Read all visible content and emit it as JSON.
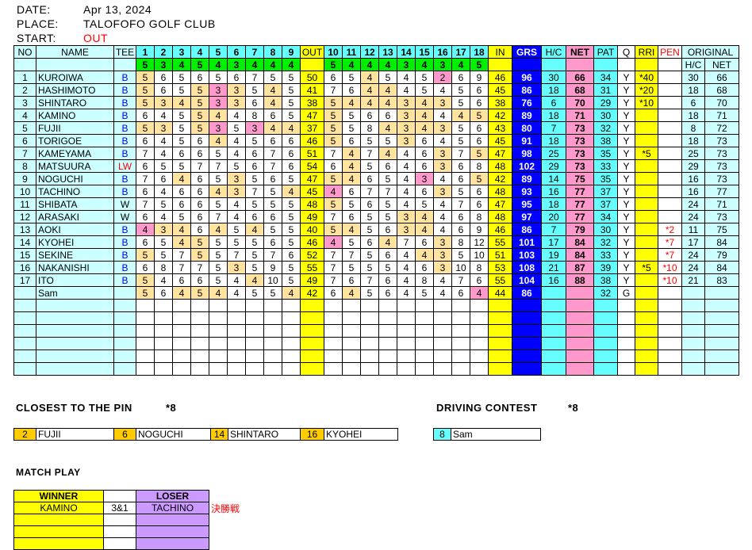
{
  "header": {
    "date_label": "DATE:",
    "date": "Apr 13, 2024",
    "place_label": "PLACE:",
    "place": "TALOFOFO GOLF CLUB",
    "start_label": "START:",
    "start": "OUT"
  },
  "columns": {
    "no": "NO",
    "name": "NAME",
    "tee": "TEE",
    "holes": [
      "1",
      "2",
      "3",
      "4",
      "5",
      "6",
      "7",
      "8",
      "9",
      "OUT",
      "10",
      "11",
      "12",
      "13",
      "14",
      "15",
      "16",
      "17",
      "18",
      "IN"
    ],
    "grs": "GRS",
    "hc": "H/C",
    "net": "NET",
    "pat": "PAT",
    "q": "Q",
    "rri": "RRI",
    "pen": "PEN",
    "original": "ORIGINAL",
    "orig_hc": "H/C",
    "orig_net": "NET"
  },
  "pars": [
    5,
    3,
    4,
    5,
    4,
    3,
    4,
    4,
    4,
    5,
    4,
    4,
    4,
    3,
    4,
    3,
    4,
    5
  ],
  "colors": {
    "par": "#ffe39e",
    "under_par": "#ff99cc",
    "tee_B": "#0000ff",
    "tee_W": "#000000",
    "tee_LW": "#ff0000",
    "pen": "#ff0000"
  },
  "players": [
    {
      "no": "1",
      "name": "KUROIWA",
      "tee": "B",
      "scores": [
        5,
        6,
        5,
        6,
        5,
        6,
        7,
        5,
        5,
        6,
        5,
        4,
        5,
        4,
        5,
        2,
        6,
        9
      ],
      "out": "50",
      "in": "46",
      "grs": "96",
      "hc": "30",
      "net": "66",
      "pat": "34",
      "q": "Y",
      "rri": "*40",
      "pen": "",
      "orig_hc": "30",
      "orig_net": "66"
    },
    {
      "no": "2",
      "name": "HASHIMOTO",
      "tee": "B",
      "scores": [
        5,
        6,
        5,
        5,
        3,
        3,
        5,
        4,
        5,
        7,
        6,
        4,
        4,
        4,
        5,
        4,
        5,
        6
      ],
      "out": "41",
      "in": "45",
      "grs": "86",
      "hc": "18",
      "net": "68",
      "pat": "31",
      "q": "Y",
      "rri": "*20",
      "pen": "",
      "orig_hc": "18",
      "orig_net": "68"
    },
    {
      "no": "3",
      "name": "SHINTARO",
      "tee": "B",
      "scores": [
        5,
        3,
        4,
        5,
        3,
        3,
        6,
        4,
        5,
        5,
        4,
        4,
        4,
        3,
        4,
        3,
        5,
        6
      ],
      "out": "38",
      "in": "38",
      "grs": "76",
      "hc": "6",
      "net": "70",
      "pat": "29",
      "q": "Y",
      "rri": "*10",
      "pen": "",
      "orig_hc": "6",
      "orig_net": "70"
    },
    {
      "no": "4",
      "name": "KAMINO",
      "tee": "B",
      "scores": [
        6,
        4,
        5,
        5,
        4,
        4,
        8,
        6,
        5,
        5,
        5,
        6,
        6,
        3,
        4,
        4,
        4,
        5
      ],
      "out": "47",
      "in": "42",
      "grs": "89",
      "hc": "18",
      "net": "71",
      "pat": "30",
      "q": "Y",
      "rri": "",
      "pen": "",
      "orig_hc": "18",
      "orig_net": "71"
    },
    {
      "no": "5",
      "name": "FUJII",
      "tee": "B",
      "scores": [
        5,
        3,
        5,
        5,
        3,
        5,
        3,
        4,
        4,
        5,
        5,
        8,
        4,
        3,
        4,
        3,
        5,
        6
      ],
      "out": "37",
      "in": "43",
      "grs": "80",
      "hc": "7",
      "net": "73",
      "pat": "32",
      "q": "Y",
      "rri": "",
      "pen": "",
      "orig_hc": "8",
      "orig_net": "72"
    },
    {
      "no": "6",
      "name": "TORIGOE",
      "tee": "B",
      "scores": [
        6,
        4,
        5,
        6,
        4,
        4,
        5,
        6,
        6,
        5,
        6,
        5,
        5,
        3,
        6,
        4,
        5,
        6
      ],
      "out": "46",
      "in": "45",
      "grs": "91",
      "hc": "18",
      "net": "73",
      "pat": "38",
      "q": "Y",
      "rri": "",
      "pen": "",
      "orig_hc": "18",
      "orig_net": "73"
    },
    {
      "no": "7",
      "name": "KAMEYAMA",
      "tee": "B",
      "scores": [
        7,
        4,
        6,
        6,
        5,
        4,
        6,
        7,
        6,
        7,
        4,
        7,
        4,
        4,
        6,
        3,
        7,
        5
      ],
      "out": "51",
      "in": "47",
      "grs": "98",
      "hc": "25",
      "net": "73",
      "pat": "35",
      "q": "Y",
      "rri": "*5",
      "pen": "",
      "orig_hc": "25",
      "orig_net": "73"
    },
    {
      "no": "8",
      "name": "MATSUURA",
      "tee": "LW",
      "scores": [
        6,
        5,
        5,
        7,
        7,
        5,
        6,
        7,
        6,
        6,
        4,
        5,
        6,
        4,
        6,
        3,
        6,
        8
      ],
      "out": "54",
      "in": "48",
      "grs": "102",
      "hc": "29",
      "net": "73",
      "pat": "33",
      "q": "Y",
      "rri": "",
      "pen": "",
      "orig_hc": "29",
      "orig_net": "73"
    },
    {
      "no": "9",
      "name": "NOGUCHI",
      "tee": "B",
      "scores": [
        7,
        6,
        4,
        6,
        5,
        3,
        5,
        6,
        5,
        5,
        4,
        6,
        5,
        4,
        3,
        4,
        6,
        5
      ],
      "out": "47",
      "in": "42",
      "grs": "89",
      "hc": "14",
      "net": "75",
      "pat": "35",
      "q": "Y",
      "rri": "",
      "pen": "",
      "orig_hc": "16",
      "orig_net": "73"
    },
    {
      "no": "10",
      "name": "TACHINO",
      "tee": "B",
      "scores": [
        6,
        4,
        6,
        6,
        4,
        3,
        7,
        5,
        4,
        4,
        6,
        7,
        7,
        4,
        6,
        3,
        5,
        6
      ],
      "out": "45",
      "in": "48",
      "grs": "93",
      "hc": "16",
      "net": "77",
      "pat": "37",
      "q": "Y",
      "rri": "",
      "pen": "",
      "orig_hc": "16",
      "orig_net": "77"
    },
    {
      "no": "11",
      "name": "SHIBATA",
      "tee": "W",
      "scores": [
        7,
        5,
        6,
        6,
        5,
        4,
        5,
        5,
        5,
        5,
        5,
        6,
        5,
        4,
        5,
        4,
        7,
        6
      ],
      "out": "48",
      "in": "47",
      "grs": "95",
      "hc": "18",
      "net": "77",
      "pat": "37",
      "q": "Y",
      "rri": "",
      "pen": "",
      "orig_hc": "24",
      "orig_net": "71"
    },
    {
      "no": "12",
      "name": "ARASAKI",
      "tee": "W",
      "scores": [
        6,
        4,
        5,
        6,
        7,
        4,
        6,
        6,
        5,
        7,
        6,
        5,
        5,
        3,
        4,
        4,
        6,
        8
      ],
      "out": "49",
      "in": "48",
      "grs": "97",
      "hc": "20",
      "net": "77",
      "pat": "34",
      "q": "Y",
      "rri": "",
      "pen": "",
      "orig_hc": "24",
      "orig_net": "73"
    },
    {
      "no": "13",
      "name": "AOKI",
      "tee": "B",
      "scores": [
        4,
        3,
        4,
        6,
        4,
        5,
        4,
        5,
        5,
        5,
        4,
        5,
        6,
        3,
        4,
        4,
        6,
        9
      ],
      "out": "40",
      "in": "46",
      "grs": "86",
      "hc": "7",
      "net": "79",
      "pat": "30",
      "q": "Y",
      "rri": "",
      "pen": "*2",
      "orig_hc": "11",
      "orig_net": "75"
    },
    {
      "no": "14",
      "name": "KYOHEI",
      "tee": "B",
      "scores": [
        6,
        5,
        4,
        5,
        5,
        5,
        5,
        6,
        5,
        4,
        5,
        6,
        4,
        7,
        6,
        3,
        8,
        12
      ],
      "out": "46",
      "in": "55",
      "grs": "101",
      "hc": "17",
      "net": "84",
      "pat": "32",
      "q": "Y",
      "rri": "",
      "pen": "*7",
      "orig_hc": "17",
      "orig_net": "84"
    },
    {
      "no": "15",
      "name": "SEKINE",
      "tee": "B",
      "scores": [
        5,
        5,
        7,
        5,
        5,
        7,
        5,
        7,
        6,
        7,
        7,
        5,
        6,
        4,
        4,
        3,
        5,
        10
      ],
      "out": "52",
      "in": "51",
      "grs": "103",
      "hc": "19",
      "net": "84",
      "pat": "33",
      "q": "Y",
      "rri": "",
      "pen": "*7",
      "orig_hc": "24",
      "orig_net": "79"
    },
    {
      "no": "16",
      "name": "NAKANISHI",
      "tee": "B",
      "scores": [
        6,
        8,
        7,
        7,
        5,
        3,
        5,
        9,
        5,
        7,
        5,
        5,
        5,
        4,
        6,
        3,
        10,
        8
      ],
      "out": "55",
      "in": "53",
      "grs": "108",
      "hc": "21",
      "net": "87",
      "pat": "39",
      "q": "Y",
      "rri": "*5",
      "pen": "*10",
      "orig_hc": "24",
      "orig_net": "84"
    },
    {
      "no": "17",
      "name": "ITO",
      "tee": "B",
      "scores": [
        5,
        4,
        6,
        6,
        5,
        4,
        4,
        10,
        5,
        7,
        6,
        7,
        6,
        4,
        8,
        4,
        7,
        6
      ],
      "out": "49",
      "in": "55",
      "grs": "104",
      "hc": "16",
      "net": "88",
      "pat": "38",
      "q": "Y",
      "rri": "",
      "pen": "*10",
      "orig_hc": "21",
      "orig_net": "83"
    },
    {
      "no": "",
      "name": "Sam",
      "tee": "",
      "scores": [
        5,
        6,
        4,
        5,
        4,
        4,
        5,
        5,
        4,
        6,
        4,
        5,
        6,
        4,
        5,
        4,
        6,
        4
      ],
      "out": "42",
      "in": "44",
      "grs": "86",
      "hc": "",
      "net": "",
      "pat": "32",
      "q": "G",
      "rri": "",
      "pen": "",
      "orig_hc": "",
      "orig_net": ""
    }
  ],
  "closest_to_pin": {
    "title": "CLOSEST TO THE PIN",
    "note": "*8",
    "entries": [
      {
        "hole": "2",
        "name": "FUJII"
      },
      {
        "hole": "6",
        "name": "NOGUCHI"
      },
      {
        "hole": "14",
        "name": "SHINTARO"
      },
      {
        "hole": "16",
        "name": "KYOHEI"
      }
    ]
  },
  "driving_contest": {
    "title": "DRIVING CONTEST",
    "note": "*8",
    "entries": [
      {
        "hole": "8",
        "name": "Sam"
      }
    ]
  },
  "match_play": {
    "title": "MATCH PLAY",
    "winner_label": "WINNER",
    "loser_label": "LOSER",
    "matches": [
      {
        "winner": "KAMINO",
        "result": "3&1",
        "loser": "TACHINO",
        "note": "決勝戦"
      }
    ]
  }
}
